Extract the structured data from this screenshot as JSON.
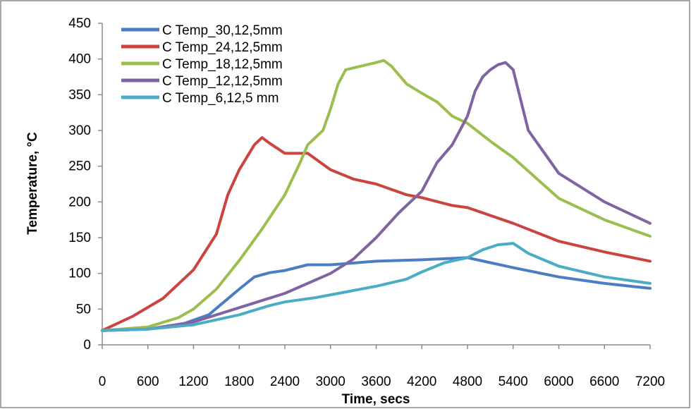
{
  "chart_data": {
    "type": "line",
    "title": "",
    "xlabel": "Time, secs",
    "ylabel": "Temperature, °C",
    "xlim": [
      0,
      7200
    ],
    "ylim": [
      0,
      450
    ],
    "xticks": [
      "0",
      "600",
      "1200",
      "1800",
      "2400",
      "3000",
      "3600",
      "4200",
      "4800",
      "5400",
      "6000",
      "6600",
      "7200"
    ],
    "yticks": [
      "0",
      "50",
      "100",
      "150",
      "200",
      "250",
      "300",
      "350",
      "400",
      "450"
    ],
    "grid": false,
    "legend_position": "top-left",
    "series": [
      {
        "name": "C Temp_30,12,5mm",
        "color": "#4a7dc4",
        "x": [
          0,
          600,
          1000,
          1400,
          1600,
          1800,
          2000,
          2200,
          2400,
          2700,
          3000,
          3600,
          4200,
          4800,
          5100,
          5400,
          6000,
          6600,
          7200
        ],
        "y": [
          20,
          22,
          27,
          42,
          60,
          78,
          95,
          101,
          104,
          112,
          112,
          117,
          119,
          122,
          115,
          108,
          95,
          86,
          79
        ]
      },
      {
        "name": "C Temp_24,12,5mm",
        "color": "#cb4440",
        "x": [
          0,
          400,
          800,
          1200,
          1500,
          1650,
          1800,
          2000,
          2100,
          2200,
          2400,
          2700,
          3000,
          3300,
          3600,
          4000,
          4200,
          4600,
          4800,
          5400,
          6000,
          6600,
          7200
        ],
        "y": [
          20,
          40,
          65,
          105,
          155,
          210,
          245,
          280,
          290,
          282,
          268,
          268,
          245,
          232,
          225,
          210,
          206,
          195,
          192,
          170,
          145,
          130,
          117
        ]
      },
      {
        "name": "C Temp_18,12,5mm",
        "color": "#9bbf4e",
        "x": [
          0,
          600,
          1000,
          1200,
          1500,
          1800,
          2100,
          2400,
          2600,
          2700,
          2900,
          3000,
          3100,
          3200,
          3400,
          3600,
          3700,
          3800,
          4000,
          4200,
          4400,
          4600,
          4800,
          5100,
          5400,
          6000,
          6600,
          7200
        ],
        "y": [
          20,
          25,
          38,
          50,
          78,
          118,
          162,
          210,
          255,
          280,
          300,
          330,
          365,
          385,
          390,
          395,
          398,
          390,
          365,
          352,
          340,
          320,
          310,
          285,
          262,
          205,
          175,
          152
        ]
      },
      {
        "name": "C Temp_12,12,5mm",
        "color": "#8064a2",
        "x": [
          0,
          600,
          1200,
          1800,
          2400,
          3000,
          3300,
          3600,
          3900,
          4200,
          4400,
          4600,
          4800,
          4900,
          5000,
          5100,
          5200,
          5300,
          5400,
          5600,
          6000,
          6600,
          7200
        ],
        "y": [
          20,
          22,
          32,
          52,
          72,
          100,
          120,
          150,
          185,
          215,
          255,
          280,
          320,
          355,
          375,
          385,
          392,
          395,
          385,
          300,
          240,
          200,
          170
        ]
      },
      {
        "name": "C Temp_6,12,5 mm",
        "color": "#4bacc6",
        "x": [
          0,
          600,
          1200,
          1800,
          2200,
          2400,
          2800,
          3000,
          3300,
          3600,
          4000,
          4200,
          4500,
          4800,
          5000,
          5200,
          5400,
          5600,
          6000,
          6600,
          7200
        ],
        "y": [
          20,
          22,
          28,
          42,
          55,
          60,
          66,
          70,
          76,
          82,
          92,
          102,
          115,
          122,
          133,
          140,
          142,
          128,
          110,
          95,
          86
        ]
      }
    ]
  }
}
